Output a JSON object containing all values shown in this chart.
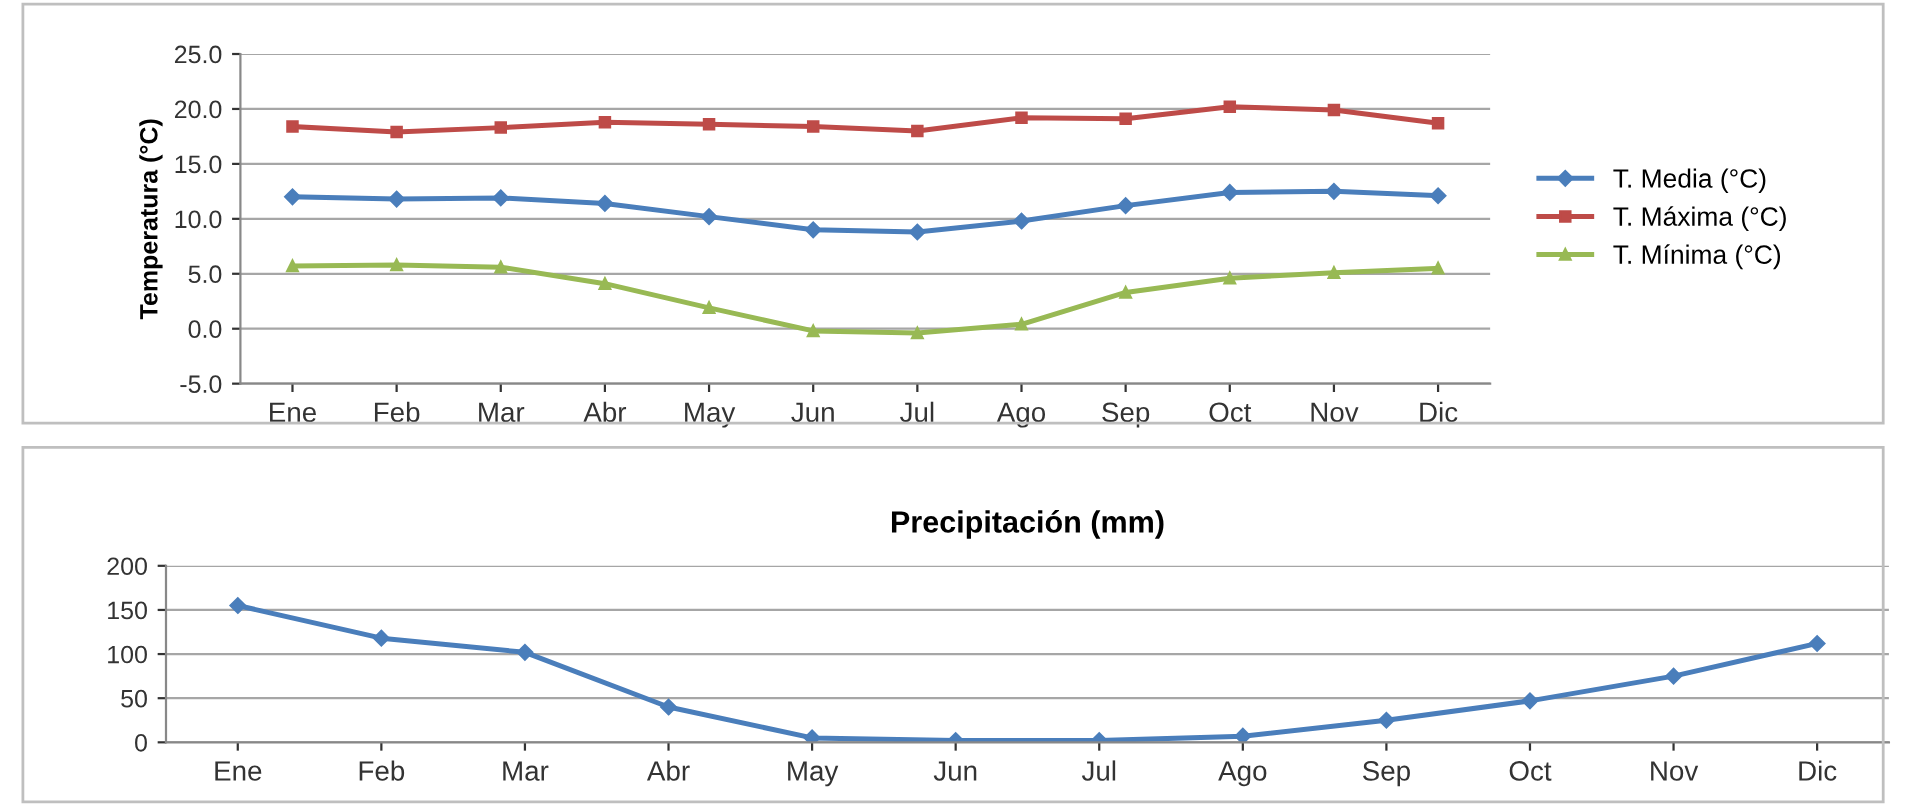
{
  "chart_data": [
    {
      "type": "line",
      "ylabel": "Temperatura (°C)",
      "categories": [
        "Ene",
        "Feb",
        "Mar",
        "Abr",
        "May",
        "Jun",
        "Jul",
        "Ago",
        "Sep",
        "Oct",
        "Nov",
        "Dic"
      ],
      "series": [
        {
          "name": "T. Media (°C)",
          "color": "#4a7ebb",
          "marker": "diamond",
          "values": [
            12.0,
            11.8,
            11.9,
            11.4,
            10.2,
            9.0,
            8.8,
            9.8,
            11.2,
            12.4,
            12.5,
            12.1
          ]
        },
        {
          "name": "T. Máxima (°C)",
          "color": "#be4b48",
          "marker": "square",
          "values": [
            18.4,
            17.9,
            18.3,
            18.8,
            18.6,
            18.4,
            18.0,
            19.2,
            19.1,
            20.2,
            19.9,
            18.7
          ]
        },
        {
          "name": "T. Mínima (°C)",
          "color": "#98b954",
          "marker": "triangle",
          "values": [
            5.7,
            5.8,
            5.6,
            4.1,
            1.9,
            -0.2,
            -0.4,
            0.4,
            3.3,
            4.6,
            5.1,
            5.5
          ]
        }
      ],
      "ylim": [
        -5,
        25
      ],
      "yticks": [
        {
          "value": -5,
          "label": "-5.0"
        },
        {
          "value": 0,
          "label": "0.0"
        },
        {
          "value": 5,
          "label": "5.0"
        },
        {
          "value": 10,
          "label": "10.0"
        },
        {
          "value": 15,
          "label": "15.0"
        },
        {
          "value": 20,
          "label": "20.0"
        },
        {
          "value": 25,
          "label": "25.0"
        }
      ],
      "grid": "y",
      "legend": "right"
    },
    {
      "type": "line",
      "title": "Precipitación (mm)",
      "categories": [
        "Ene",
        "Feb",
        "Mar",
        "Abr",
        "May",
        "Jun",
        "Jul",
        "Ago",
        "Sep",
        "Oct",
        "Nov",
        "Dic"
      ],
      "series": [
        {
          "color": "#4a7ebb",
          "marker": "diamond",
          "values": [
            155,
            118,
            102,
            40,
            5,
            2,
            2,
            7,
            25,
            47,
            75,
            112
          ]
        }
      ],
      "ylim": [
        0,
        200
      ],
      "yticks": [
        0,
        50,
        100,
        150,
        200
      ],
      "grid": "y"
    }
  ]
}
